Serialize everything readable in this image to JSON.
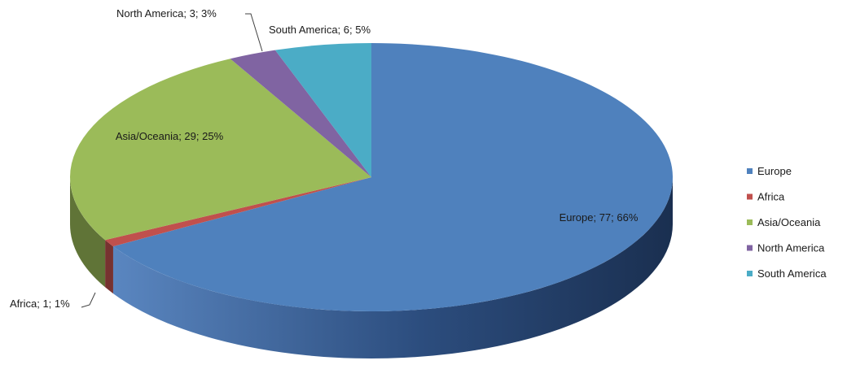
{
  "chart_data": {
    "type": "pie",
    "style": "3d",
    "slices": [
      {
        "name": "Europe",
        "value": 77,
        "percent": "66%",
        "label": "Europe; 77; 66%",
        "color": "#4F81BD"
      },
      {
        "name": "Africa",
        "value": 1,
        "percent": "1%",
        "label": "Africa; 1; 1%",
        "color": "#C0504D"
      },
      {
        "name": "Asia/Oceania",
        "value": 29,
        "percent": "25%",
        "label": "Asia/Oceania; 29; 25%",
        "color": "#9BBB59"
      },
      {
        "name": "North America",
        "value": 3,
        "percent": "3%",
        "label": "North America; 3; 3%",
        "color": "#8064A2"
      },
      {
        "name": "South America",
        "value": 6,
        "percent": "5%",
        "label": "South America; 6; 5%",
        "color": "#4BACC6"
      }
    ],
    "legend": {
      "position": "right",
      "items": [
        "Europe",
        "Africa",
        "Asia/Oceania",
        "North America",
        "South America"
      ]
    }
  }
}
